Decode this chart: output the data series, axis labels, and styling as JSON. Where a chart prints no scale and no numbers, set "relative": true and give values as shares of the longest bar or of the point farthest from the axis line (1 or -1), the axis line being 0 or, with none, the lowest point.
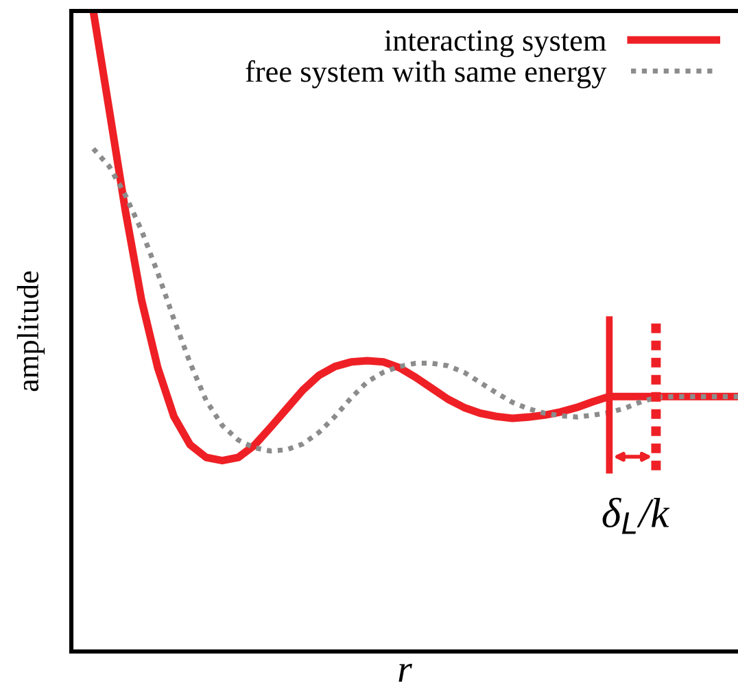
{
  "chart_data": {
    "type": "line",
    "relative": true,
    "xlabel": "r",
    "ylabel": "amplitude",
    "legend": "top right",
    "categories": [
      null,
      null,
      null,
      null,
      null,
      null,
      null,
      null,
      null,
      null,
      null,
      null,
      null,
      null,
      null,
      null,
      null,
      null,
      null,
      null,
      null,
      null,
      null,
      null,
      null,
      null,
      null,
      null,
      null,
      null,
      null,
      null,
      null,
      null,
      null,
      null,
      null,
      null,
      null,
      null,
      null
    ],
    "series": [
      {
        "name": "interacting system",
        "color": "#ee2025",
        "line_style": "solid",
        "values": [
          1.0,
          0.844,
          0.687,
          0.548,
          0.443,
          0.367,
          0.323,
          0.303,
          0.298,
          0.303,
          0.322,
          0.35,
          0.379,
          0.408,
          0.431,
          0.445,
          0.452,
          0.454,
          0.452,
          0.443,
          0.428,
          0.411,
          0.394,
          0.381,
          0.372,
          0.367,
          0.364,
          0.366,
          0.369,
          0.374,
          0.381,
          0.39,
          0.398,
          0.398,
          0.398,
          0.398,
          0.398,
          0.398,
          0.398,
          0.398,
          0.398
        ]
      },
      {
        "name": "free system with same energy",
        "color": "#8c8c8c",
        "line_style": "dotted",
        "values": [
          0.785,
          0.757,
          0.712,
          0.657,
          0.591,
          0.519,
          0.451,
          0.392,
          0.353,
          0.33,
          0.318,
          0.313,
          0.315,
          0.324,
          0.342,
          0.367,
          0.396,
          0.421,
          0.436,
          0.445,
          0.45,
          0.45,
          0.446,
          0.436,
          0.42,
          0.404,
          0.389,
          0.379,
          0.372,
          0.368,
          0.366,
          0.369,
          0.373,
          0.38,
          0.39,
          0.397,
          0.398,
          0.398,
          0.398,
          0.398,
          0.398
        ]
      }
    ],
    "annotations": [
      "δ$_{L}$/k"
    ]
  }
}
